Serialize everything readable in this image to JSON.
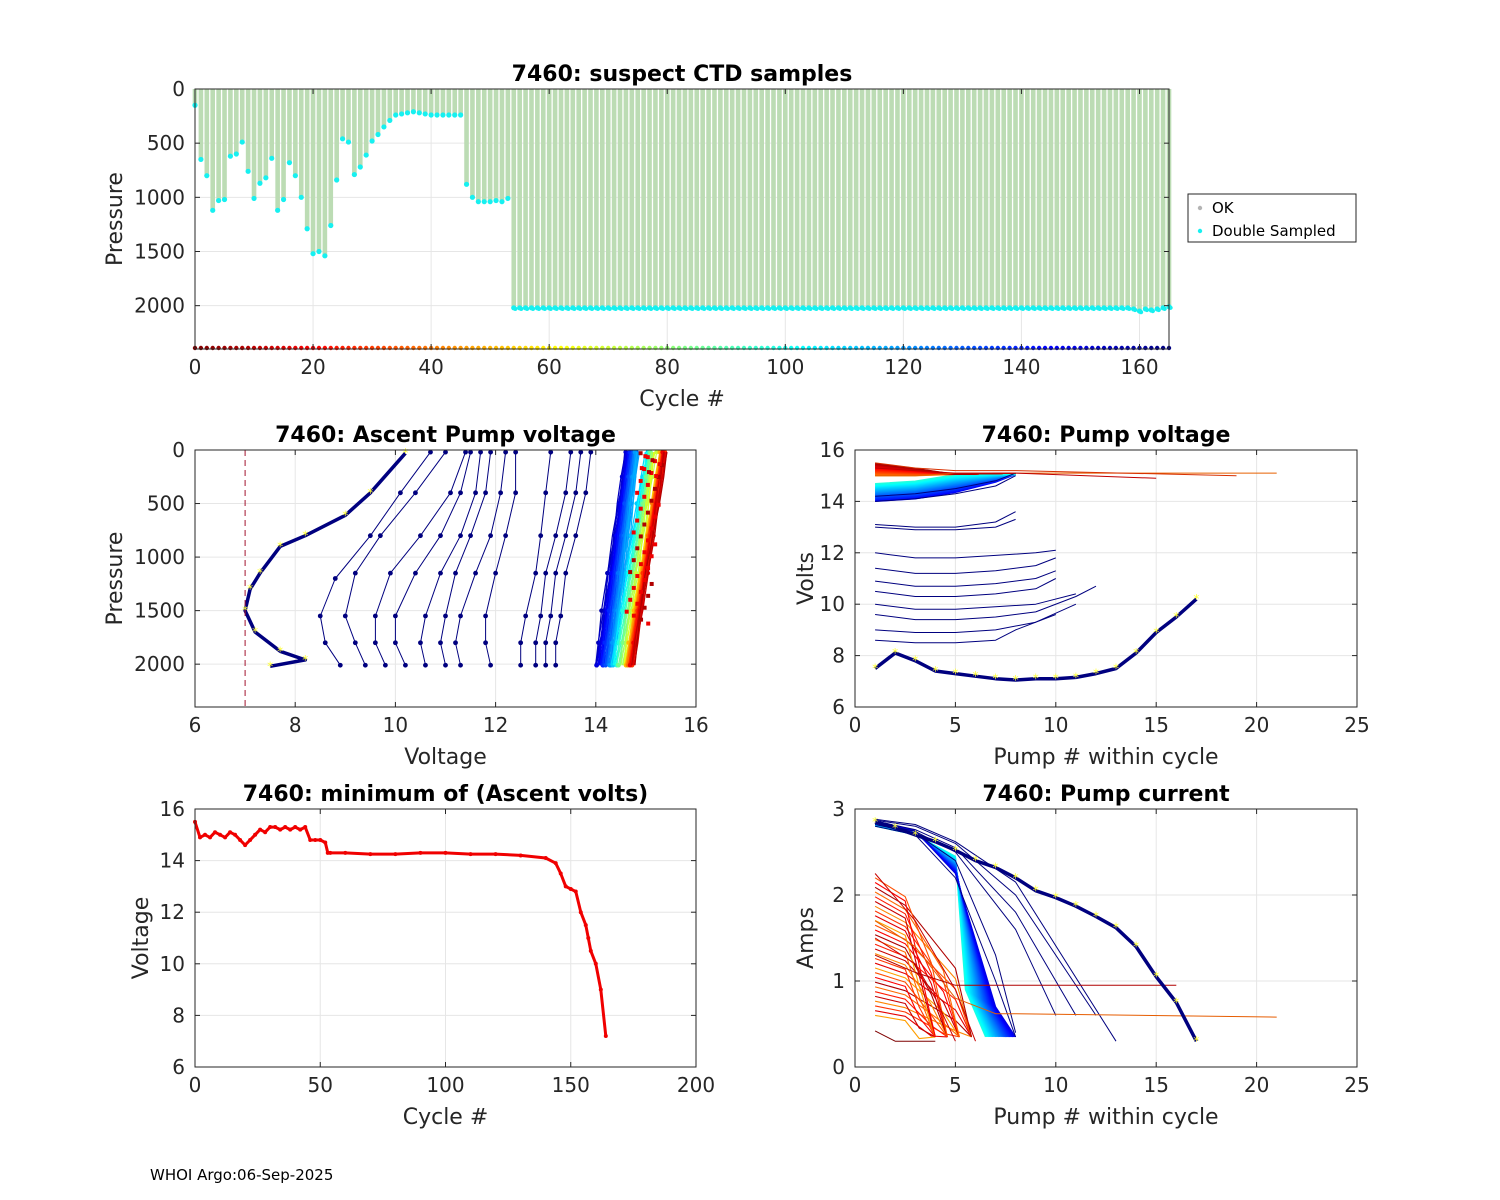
{
  "footer": "WHOI Argo:06-Sep-2025",
  "colors": {
    "ok": "#b4b4b4",
    "ok_bar": "#bcdcb4",
    "double": "#17f0f0",
    "dark_blue": "#00007f",
    "min_volts": "#f00000",
    "min_line": "#a2142f",
    "highlight": "#ffff33"
  },
  "chart_data": [
    {
      "id": "ctd",
      "type": "bar",
      "title": "7460: suspect CTD samples",
      "xlabel": "Cycle #",
      "ylabel": "Pressure",
      "xlim": [
        0,
        165
      ],
      "ylim": [
        2400,
        0
      ],
      "xticks": [
        "0",
        "20",
        "40",
        "60",
        "80",
        "100",
        "120",
        "140",
        "160"
      ],
      "yticks": [
        "0",
        "500",
        "1000",
        "1500",
        "2000"
      ],
      "legend": {
        "position": "right",
        "entries": [
          "OK",
          "Double Sampled"
        ]
      },
      "profile_depth_by_cycle_range": [
        {
          "cycles": [
            0,
            2
          ],
          "values": [
            150,
            650,
            800
          ]
        },
        {
          "cycles": [
            3,
            22
          ],
          "values": [
            1120,
            1030,
            1020,
            620,
            600,
            490,
            760,
            1010,
            870,
            820,
            640,
            1120,
            1020,
            680,
            800,
            1000,
            1290,
            1520,
            1500,
            1540
          ]
        },
        {
          "cycles": [
            23,
            46
          ],
          "values": [
            1260,
            840,
            460,
            490,
            790,
            720,
            610,
            480,
            420,
            350,
            290,
            240,
            230,
            220,
            210,
            220,
            230,
            240,
            240,
            240,
            240,
            240,
            240,
            880
          ]
        },
        {
          "cycles": [
            47,
            53
          ],
          "values": [
            1000,
            1040,
            1040,
            1040,
            1030,
            1040,
            1010
          ]
        },
        {
          "cycles": [
            54,
            158
          ],
          "value": 2020
        },
        {
          "cycles": [
            159,
            165
          ],
          "values": [
            2030,
            2050,
            2030,
            2040,
            2030,
            2020,
            2010
          ]
        }
      ]
    },
    {
      "id": "ascent",
      "type": "line",
      "title": "7460: Ascent Pump voltage",
      "xlabel": "Voltage",
      "ylabel": "Pressure",
      "xlim": [
        6,
        16
      ],
      "ylim": [
        2400,
        0
      ],
      "xticks": [
        "6",
        "8",
        "10",
        "12",
        "14",
        "16"
      ],
      "yticks": [
        "0",
        "500",
        "1000",
        "1500",
        "2000"
      ],
      "min_voltage_line": 7,
      "highlighted_profile": {
        "voltage": [
          7.5,
          8.2,
          7.7,
          7.2,
          7.0,
          7.1,
          7.3,
          7.7,
          8.2,
          9.0,
          9.5,
          10.2
        ],
        "pressure": [
          2020,
          1960,
          1880,
          1700,
          1500,
          1300,
          1150,
          900,
          800,
          610,
          400,
          30
        ]
      },
      "profiles": [
        {
          "cycle": 160,
          "voltage": [
            8.9,
            8.6,
            8.5,
            8.8,
            9.5,
            10.1,
            10.7
          ],
          "pressure": [
            2010,
            1800,
            1550,
            1200,
            800,
            400,
            20
          ]
        },
        {
          "cycle": 158,
          "voltage": [
            9.4,
            9.2,
            9.0,
            9.2,
            9.7,
            10.4,
            11.0
          ],
          "pressure": [
            2010,
            1800,
            1550,
            1150,
            800,
            400,
            20
          ]
        },
        {
          "cycle": 156,
          "voltage": [
            9.8,
            9.6,
            9.6,
            9.9,
            10.5,
            11.1,
            11.4
          ],
          "pressure": [
            2010,
            1800,
            1550,
            1150,
            800,
            400,
            20
          ]
        },
        {
          "cycle": 155,
          "voltage": [
            10.2,
            10.0,
            10.0,
            10.4,
            10.9,
            11.3,
            11.5
          ],
          "pressure": [
            2010,
            1800,
            1550,
            1150,
            800,
            400,
            20
          ]
        },
        {
          "cycle": 154,
          "voltage": [
            10.6,
            10.5,
            10.6,
            10.9,
            11.3,
            11.6,
            11.7
          ],
          "pressure": [
            2010,
            1800,
            1550,
            1150,
            800,
            400,
            20
          ]
        },
        {
          "cycle": 153,
          "voltage": [
            11.0,
            10.9,
            11.0,
            11.2,
            11.5,
            11.8,
            11.9
          ],
          "pressure": [
            2010,
            1800,
            1550,
            1150,
            800,
            400,
            20
          ]
        },
        {
          "cycle": 152,
          "voltage": [
            11.3,
            11.2,
            11.3,
            11.6,
            11.9,
            12.1,
            12.2
          ],
          "pressure": [
            2010,
            1800,
            1550,
            1150,
            800,
            400,
            20
          ]
        },
        {
          "cycle": 151,
          "voltage": [
            11.9,
            11.8,
            11.8,
            12.0,
            12.2,
            12.4,
            12.4
          ],
          "pressure": [
            2010,
            1800,
            1550,
            1150,
            800,
            400,
            20
          ]
        },
        {
          "cycle": 150,
          "voltage": [
            12.5,
            12.5,
            12.6,
            12.8,
            12.9,
            13.0,
            13.1
          ],
          "pressure": [
            2010,
            1800,
            1550,
            1150,
            800,
            400,
            20
          ]
        },
        {
          "cycle": 149,
          "voltage": [
            12.8,
            12.8,
            12.9,
            13.0,
            13.2,
            13.4,
            13.5
          ],
          "pressure": [
            2010,
            1800,
            1550,
            1150,
            800,
            400,
            20
          ]
        },
        {
          "cycle": 148,
          "voltage": [
            13.0,
            13.0,
            13.1,
            13.2,
            13.4,
            13.6,
            13.7
          ],
          "pressure": [
            2010,
            1800,
            1550,
            1150,
            800,
            400,
            20
          ]
        },
        {
          "cycle": 147,
          "voltage": [
            13.2,
            13.2,
            13.3,
            13.4,
            13.6,
            13.8,
            13.9
          ],
          "pressure": [
            2010,
            1800,
            1550,
            1150,
            800,
            400,
            20
          ]
        }
      ],
      "band_summary": {
        "dark_blue_range": [
          14.0,
          14.6
        ],
        "cyan_range": [
          14.3,
          15.0
        ],
        "orange_range": [
          14.6,
          15.3
        ],
        "red_range": [
          14.7,
          15.4
        ]
      }
    },
    {
      "id": "pumpv",
      "type": "line",
      "title": "7460: Pump voltage",
      "xlabel": "Pump # within cycle",
      "ylabel": "Volts",
      "xlim": [
        0,
        25
      ],
      "ylim": [
        6,
        16
      ],
      "xticks": [
        "0",
        "5",
        "10",
        "15",
        "20",
        "25"
      ],
      "yticks": [
        "6",
        "8",
        "10",
        "12",
        "14",
        "16"
      ],
      "highlighted_series": {
        "x": [
          1,
          2,
          3,
          4,
          5,
          6,
          7,
          8,
          9,
          10,
          11,
          12,
          13,
          14,
          15,
          16,
          17
        ],
        "y": [
          7.5,
          8.1,
          7.8,
          7.4,
          7.3,
          7.2,
          7.1,
          7.05,
          7.1,
          7.1,
          7.15,
          7.3,
          7.5,
          8.1,
          8.9,
          9.5,
          10.2
        ]
      },
      "series": [
        {
          "x": [
            1,
            3,
            5,
            7,
            8,
            10
          ],
          "y": [
            8.6,
            8.5,
            8.5,
            8.6,
            9.0,
            9.6
          ]
        },
        {
          "x": [
            1,
            3,
            5,
            7,
            9,
            11
          ],
          "y": [
            9.0,
            8.9,
            8.9,
            9.0,
            9.3,
            10.0
          ]
        },
        {
          "x": [
            1,
            3,
            5,
            7,
            9,
            11,
            12
          ],
          "y": [
            9.6,
            9.4,
            9.4,
            9.5,
            9.7,
            10.3,
            10.7
          ]
        },
        {
          "x": [
            1,
            3,
            5,
            7,
            9,
            11
          ],
          "y": [
            10.0,
            9.8,
            9.8,
            9.9,
            10.0,
            10.4
          ]
        },
        {
          "x": [
            1,
            3,
            5,
            7,
            9,
            10
          ],
          "y": [
            10.5,
            10.3,
            10.3,
            10.4,
            10.6,
            11.0
          ]
        },
        {
          "x": [
            1,
            3,
            5,
            7,
            9,
            10
          ],
          "y": [
            10.9,
            10.7,
            10.7,
            10.8,
            11.0,
            11.3
          ]
        },
        {
          "x": [
            1,
            3,
            5,
            7,
            9,
            10
          ],
          "y": [
            11.4,
            11.2,
            11.2,
            11.3,
            11.5,
            11.8
          ]
        },
        {
          "x": [
            1,
            3,
            5,
            7,
            9,
            10
          ],
          "y": [
            12.0,
            11.8,
            11.8,
            11.9,
            12.0,
            12.1
          ]
        },
        {
          "x": [
            1,
            3,
            5,
            7,
            8
          ],
          "y": [
            13.0,
            12.9,
            12.9,
            13.0,
            13.3
          ]
        },
        {
          "x": [
            1,
            3,
            5,
            7,
            8
          ],
          "y": [
            13.1,
            13.0,
            13.0,
            13.2,
            13.6
          ]
        },
        {
          "x": [
            1,
            3,
            5,
            7,
            8
          ],
          "y": [
            14.0,
            14.1,
            14.3,
            14.6,
            15.0
          ]
        },
        {
          "x": [
            1,
            3,
            5,
            7,
            8
          ],
          "y": [
            14.2,
            14.3,
            14.5,
            14.8,
            15.1
          ]
        },
        {
          "x": [
            1,
            3,
            5,
            8,
            21
          ],
          "y": [
            15.0,
            15.0,
            15.1,
            15.1,
            15.1
          ]
        },
        {
          "x": [
            1,
            3,
            5,
            8,
            15
          ],
          "y": [
            15.3,
            15.2,
            15.1,
            15.1,
            14.9
          ]
        },
        {
          "x": [
            1,
            3,
            5,
            8,
            19
          ],
          "y": [
            15.5,
            15.3,
            15.2,
            15.2,
            15.0
          ]
        }
      ]
    },
    {
      "id": "minv",
      "type": "line",
      "title": "7460: minimum of (Ascent volts)",
      "xlabel": "Cycle #",
      "ylabel": "Voltage",
      "xlim": [
        0,
        200
      ],
      "ylim": [
        6,
        16
      ],
      "xticks": [
        "0",
        "50",
        "100",
        "150",
        "200"
      ],
      "yticks": [
        "6",
        "8",
        "10",
        "12",
        "14",
        "16"
      ],
      "x": [
        0,
        2,
        4,
        6,
        8,
        10,
        12,
        14,
        16,
        18,
        20,
        22,
        24,
        26,
        28,
        30,
        32,
        34,
        36,
        38,
        40,
        42,
        44,
        46,
        48,
        50,
        52,
        53,
        54,
        60,
        70,
        80,
        90,
        100,
        110,
        120,
        130,
        140,
        144,
        146,
        148,
        150,
        152,
        154,
        156,
        157,
        158,
        160,
        162,
        164
      ],
      "y": [
        15.5,
        14.9,
        15.0,
        14.9,
        15.1,
        15.0,
        14.9,
        15.1,
        15.0,
        14.8,
        14.6,
        14.8,
        15.0,
        15.2,
        15.1,
        15.3,
        15.3,
        15.2,
        15.3,
        15.2,
        15.3,
        15.2,
        15.3,
        14.8,
        14.8,
        14.8,
        14.7,
        14.3,
        14.3,
        14.3,
        14.25,
        14.25,
        14.3,
        14.3,
        14.25,
        14.25,
        14.2,
        14.1,
        13.9,
        13.5,
        13.0,
        12.9,
        12.8,
        12.0,
        11.5,
        11.0,
        10.5,
        10.0,
        9.0,
        7.2
      ]
    },
    {
      "id": "pumpc",
      "type": "line",
      "title": "7460: Pump current",
      "xlabel": "Pump # within cycle",
      "ylabel": "Amps",
      "xlim": [
        0,
        25
      ],
      "ylim": [
        0,
        3
      ],
      "xticks": [
        "0",
        "5",
        "10",
        "15",
        "20",
        "25"
      ],
      "yticks": [
        "0",
        "1",
        "2",
        "3"
      ],
      "highlighted_series": {
        "x": [
          1,
          2,
          3,
          4,
          5,
          6,
          7,
          8,
          9,
          10,
          11,
          12,
          13,
          14,
          15,
          16,
          17
        ],
        "y": [
          2.85,
          2.78,
          2.7,
          2.62,
          2.52,
          2.4,
          2.32,
          2.2,
          2.05,
          1.97,
          1.87,
          1.75,
          1.62,
          1.4,
          1.05,
          0.75,
          0.3
        ]
      },
      "series": [
        {
          "x": [
            1,
            3,
            5,
            7,
            8
          ],
          "y": [
            2.8,
            2.7,
            2.2,
            1.0,
            0.35
          ]
        },
        {
          "x": [
            1,
            3,
            5,
            7,
            8
          ],
          "y": [
            2.82,
            2.72,
            2.4,
            1.3,
            0.4
          ]
        },
        {
          "x": [
            1,
            3,
            5,
            8,
            10
          ],
          "y": [
            2.84,
            2.74,
            2.5,
            1.6,
            0.6
          ]
        },
        {
          "x": [
            1,
            3,
            5,
            8,
            11
          ],
          "y": [
            2.86,
            2.76,
            2.55,
            1.8,
            0.6
          ]
        },
        {
          "x": [
            1,
            3,
            5,
            8,
            12
          ],
          "y": [
            2.87,
            2.8,
            2.6,
            2.0,
            0.6
          ]
        },
        {
          "x": [
            1,
            3,
            5,
            8,
            13
          ],
          "y": [
            2.88,
            2.82,
            2.62,
            2.15,
            0.3
          ]
        },
        {
          "x": [
            1,
            3,
            5,
            7,
            8,
            21
          ],
          "y": [
            1.7,
            1.4,
            0.8,
            0.62,
            0.62,
            0.58
          ]
        },
        {
          "x": [
            1,
            3,
            5,
            7,
            8,
            16
          ],
          "y": [
            1.3,
            1.1,
            0.95,
            0.95,
            0.95,
            0.95
          ]
        },
        {
          "x": [
            1,
            3,
            5,
            6
          ],
          "y": [
            2.25,
            1.7,
            0.9,
            0.3
          ]
        },
        {
          "x": [
            1,
            3,
            4,
            5
          ],
          "y": [
            1.5,
            1.2,
            0.8,
            0.3
          ]
        },
        {
          "x": [
            1,
            2,
            3,
            4
          ],
          "y": [
            0.42,
            0.3,
            0.3,
            0.3
          ]
        }
      ]
    }
  ]
}
